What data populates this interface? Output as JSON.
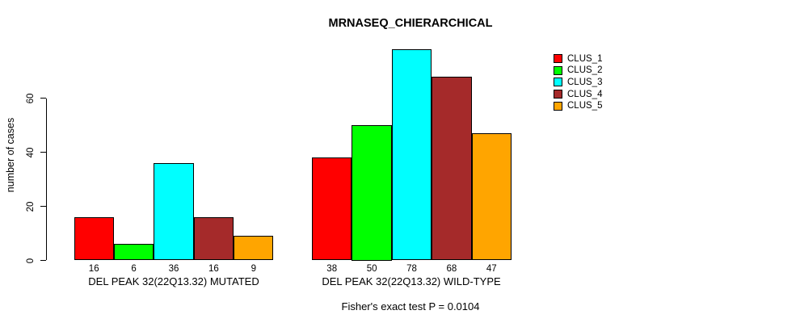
{
  "title": "MRNASEQ_CHIERARCHICAL",
  "footnote": "Fisher's exact test P = 0.0104",
  "chart_data": {
    "type": "bar",
    "title": "MRNASEQ_CHIERARCHICAL",
    "xlabel": "",
    "ylabel": "number of cases",
    "yticks": [
      0,
      20,
      40,
      60
    ],
    "ylim": [
      0,
      78
    ],
    "grid": false,
    "legend_position": "top-right",
    "series_names": [
      "CLUS_1",
      "CLUS_2",
      "CLUS_3",
      "CLUS_4",
      "CLUS_5"
    ],
    "series_colors": [
      "#FF0000",
      "#00FF00",
      "#00FFFF",
      "#A52A2A",
      "#FFA500"
    ],
    "groups": [
      {
        "label": "DEL PEAK 32(22Q13.32) MUTATED",
        "values": [
          16,
          6,
          36,
          16,
          9
        ]
      },
      {
        "label": "DEL PEAK 32(22Q13.32) WILD-TYPE",
        "values": [
          38,
          50,
          78,
          68,
          47
        ]
      }
    ],
    "annotation": "Fisher's exact test P = 0.0104"
  },
  "legend": {
    "items": [
      {
        "label": "CLUS_1",
        "color": "#FF0000"
      },
      {
        "label": "CLUS_2",
        "color": "#00FF00"
      },
      {
        "label": "CLUS_3",
        "color": "#00FFFF"
      },
      {
        "label": "CLUS_4",
        "color": "#A52A2A"
      },
      {
        "label": "CLUS_5",
        "color": "#FFA500"
      }
    ]
  }
}
